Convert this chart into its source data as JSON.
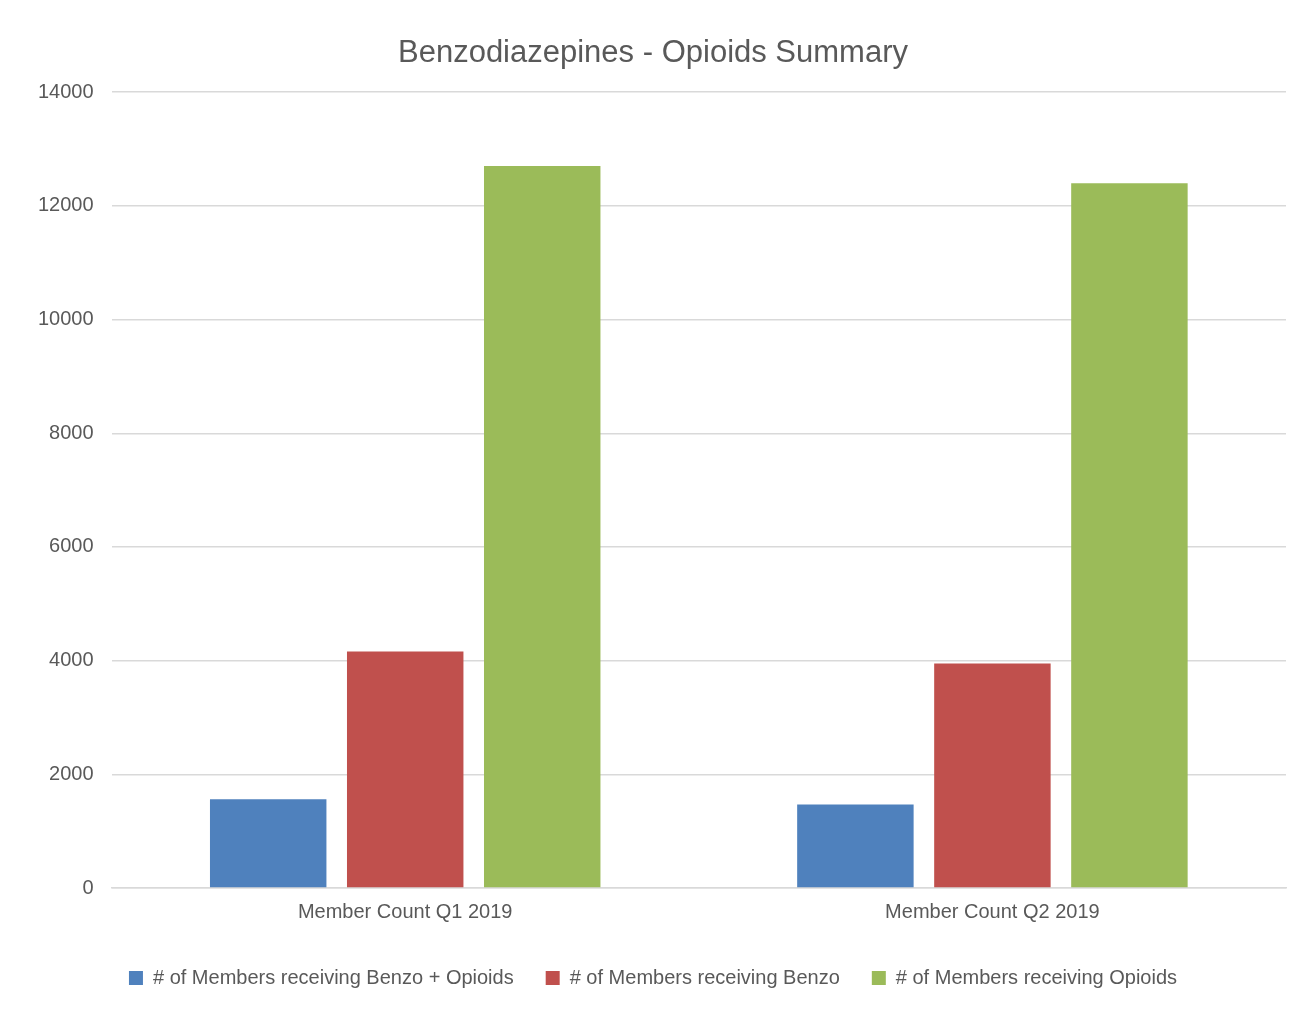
{
  "chart_data": {
    "type": "bar",
    "title": "Benzodiazepines - Opioids Summary",
    "categories": [
      "Member Count Q1 2019",
      "Member Count Q2 2019"
    ],
    "series": [
      {
        "name": "# of Members receiving Benzo + Opioids",
        "color": "#4f81bd",
        "values": [
          1560,
          1470
        ]
      },
      {
        "name": "# of Members receiving Benzo",
        "color": "#c0504d",
        "values": [
          4160,
          3950
        ]
      },
      {
        "name": "# of Members receiving Opioids",
        "color": "#9bbb59",
        "values": [
          12700,
          12400
        ]
      }
    ],
    "ylim": [
      0,
      14000
    ],
    "yticks": [
      0,
      2000,
      4000,
      6000,
      8000,
      10000,
      12000,
      14000
    ],
    "grid": "y",
    "legend": "bottom"
  }
}
